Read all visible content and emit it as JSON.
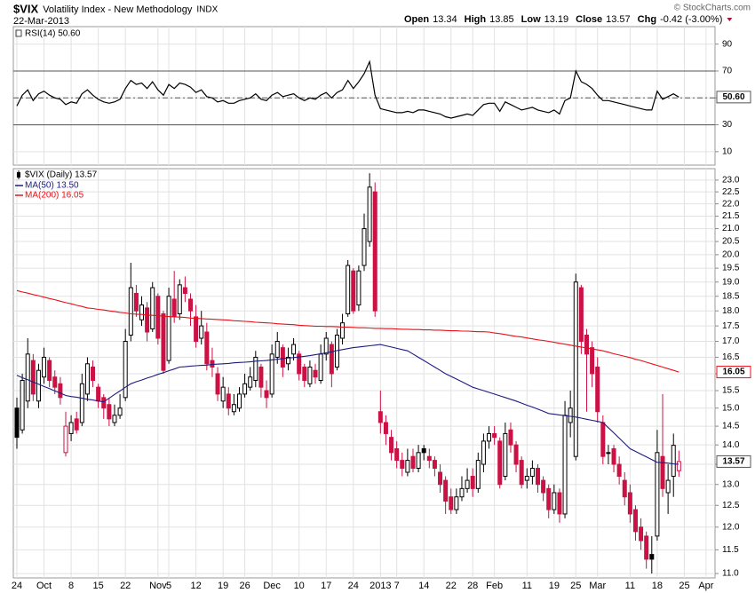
{
  "header": {
    "symbol": "$VIX",
    "name": "Volatility Index - New Methodology",
    "exchange": "INDX",
    "date": "22-Mar-2013",
    "quote": [
      {
        "label": "Open",
        "value": 13.34
      },
      {
        "label": "High",
        "value": 13.85
      },
      {
        "label": "Low",
        "value": 13.19
      },
      {
        "label": "Close",
        "value": 13.57
      },
      {
        "label": "Chg",
        "value": "-0.42 (-3.00%)"
      }
    ],
    "copyright": "© StockCharts.com"
  },
  "chart_data": [
    {
      "type": "line",
      "legend": "RSI(14) 50.60",
      "color": "#000000",
      "tag": "50.60",
      "ylim": [
        0,
        103
      ],
      "yticks": [
        10,
        30,
        50,
        70,
        90
      ],
      "levels": [
        30,
        70
      ],
      "midline": 50,
      "values": [
        44,
        52,
        56,
        48,
        53,
        55,
        52,
        50,
        49,
        45,
        47,
        46,
        53,
        56,
        52,
        49,
        47,
        46,
        47,
        49,
        57,
        63,
        60,
        61,
        57,
        62,
        56,
        52,
        60,
        57,
        61,
        60,
        58,
        54,
        56,
        51,
        50,
        47,
        48,
        46,
        46,
        48,
        49,
        50,
        53,
        49,
        48,
        52,
        54,
        51,
        52,
        53,
        50,
        48,
        50,
        49,
        52,
        54,
        50,
        54,
        56,
        63,
        57,
        62,
        68,
        77,
        52,
        42,
        41,
        40,
        39,
        39,
        40,
        39,
        41,
        41,
        40,
        39,
        38,
        36,
        35,
        36,
        37,
        38,
        37,
        41,
        45,
        46,
        46,
        40,
        47,
        45,
        43,
        41,
        42,
        43,
        41,
        40,
        39,
        41,
        38,
        48,
        50,
        70,
        62,
        60,
        57,
        52,
        48,
        48,
        47,
        46,
        45,
        44,
        43,
        42,
        41,
        41,
        55,
        49,
        51,
        53,
        50.6,
        null,
        null,
        null,
        null,
        null,
        null
      ]
    },
    {
      "type": "candlestick",
      "legend": "$VIX (Daily) 13.57",
      "tag": "13.57",
      "log": true,
      "up_color": "#000000",
      "down_color": "#cc1144",
      "ylim": [
        10.91,
        23.5
      ],
      "yticks": [
        {
          "value": 11,
          "label": "11.0"
        },
        11.5,
        {
          "value": 12,
          "label": "12.0"
        },
        12.5,
        {
          "value": 13,
          "label": "13.0"
        },
        13.5,
        {
          "value": 14,
          "label": "14.0"
        },
        14.5,
        {
          "value": 15,
          "label": "15.0"
        },
        15.5,
        {
          "value": 16,
          "label": "16.0"
        },
        16.5,
        {
          "value": 17,
          "label": "17.0"
        },
        17.5,
        {
          "value": 18,
          "label": "18.0"
        },
        18.5,
        {
          "value": 19,
          "label": "19.0"
        },
        19.5,
        {
          "value": 20,
          "label": "20.0"
        },
        20.5,
        {
          "value": 21,
          "label": "21.0"
        },
        21.5,
        {
          "value": 22,
          "label": "22.0"
        },
        22.5,
        {
          "value": 23,
          "label": "23.0"
        }
      ],
      "categories": [
        "24",
        null,
        null,
        null,
        null,
        "Oct",
        null,
        null,
        null,
        null,
        "8",
        null,
        null,
        null,
        null,
        "15",
        null,
        null,
        null,
        null,
        "22",
        null,
        null,
        null,
        null,
        null,
        "Nov",
        null,
        "5",
        null,
        null,
        null,
        null,
        "12",
        null,
        null,
        null,
        null,
        "19",
        null,
        null,
        null,
        "26",
        null,
        null,
        null,
        null,
        "Dec",
        null,
        null,
        null,
        null,
        "10",
        null,
        null,
        null,
        null,
        "17",
        null,
        null,
        null,
        null,
        "24",
        null,
        null,
        null,
        null,
        "2013",
        null,
        null,
        "7",
        null,
        null,
        null,
        null,
        "14",
        null,
        null,
        null,
        null,
        "22",
        null,
        null,
        null,
        "28",
        null,
        null,
        null,
        "Feb",
        null,
        null,
        null,
        null,
        null,
        "11",
        null,
        null,
        null,
        null,
        "19",
        null,
        null,
        null,
        "25",
        null,
        null,
        null,
        "Mar",
        null,
        null,
        null,
        null,
        null,
        "11",
        null,
        null,
        null,
        null,
        "18",
        null,
        null,
        null,
        null,
        "25",
        null,
        null,
        null,
        "Apr",
        null
      ],
      "open": [
        15.0,
        14.4,
        15.2,
        16.4,
        15.2,
        15.9,
        16.4,
        15.9,
        15.7,
        13.8,
        14.3,
        14.7,
        14.6,
        15.4,
        16.2,
        15.6,
        15.3,
        15.1,
        14.6,
        14.8,
        15.3,
        17.2,
        18.6,
        17.7,
        18.1,
        17.4,
        18.5,
        17.9,
        16.4,
        18.4,
        17.9,
        18.8,
        18.4,
        17.8,
        17.1,
        17.3,
        16.4,
        16.0,
        15.2,
        15.4,
        14.9,
        15.0,
        15.4,
        15.6,
        15.8,
        16.2,
        15.5,
        15.4,
        16.5,
        16.8,
        16.3,
        16.6,
        16.6,
        16.2,
        15.7,
        16.1,
        15.8,
        16.6,
        16.9,
        16.2,
        17.1,
        17.9,
        19.4,
        18.2,
        19.6,
        20.5,
        22.5,
        14.9,
        14.6,
        14.2,
        13.9,
        13.6,
        13.3,
        13.7,
        13.4,
        13.9,
        13.7,
        13.6,
        13.3,
        13.1,
        12.7,
        12.4,
        12.7,
        12.9,
        13.2,
        12.9,
        13.5,
        14.1,
        14.3,
        14.1,
        13.2,
        14.4,
        14.0,
        13.6,
        13.1,
        13.2,
        13.4,
        13.1,
        12.9,
        12.4,
        12.8,
        12.3,
        14.6,
        13.7,
        18.8,
        17.2,
        16.8,
        16.2,
        14.6,
        13.8,
        13.9,
        13.5,
        13.1,
        12.8,
        12.4,
        12.0,
        11.8,
        11.4,
        11.8,
        13.7,
        12.8,
        13.2,
        13.34,
        null,
        null,
        null,
        null,
        null,
        null
      ],
      "high": [
        15.3,
        16.0,
        17.1,
        16.6,
        16.3,
        16.8,
        16.5,
        16.1,
        15.9,
        14.9,
        14.8,
        14.9,
        16.0,
        16.5,
        16.4,
        15.7,
        15.4,
        15.3,
        15.1,
        15.4,
        17.4,
        19.7,
        18.9,
        18.5,
        18.3,
        19.0,
        18.6,
        18.0,
        18.8,
        19.4,
        19.1,
        19.2,
        18.6,
        18.2,
        18.0,
        17.6,
        16.8,
        16.2,
        15.9,
        15.6,
        15.4,
        15.6,
        16.0,
        16.2,
        16.7,
        16.3,
        15.8,
        16.9,
        17.3,
        16.9,
        16.8,
        17.1,
        16.7,
        16.3,
        16.4,
        16.3,
        16.9,
        17.3,
        17.0,
        17.4,
        17.9,
        19.8,
        19.5,
        19.6,
        21.6,
        23.3,
        22.9,
        15.5,
        14.8,
        14.4,
        14.1,
        13.8,
        13.9,
        13.9,
        14.0,
        14.0,
        13.9,
        13.7,
        13.5,
        13.2,
        12.9,
        12.9,
        13.2,
        13.4,
        13.4,
        13.8,
        14.3,
        14.5,
        14.5,
        14.2,
        14.6,
        14.6,
        14.1,
        13.7,
        13.4,
        13.6,
        13.5,
        13.2,
        13.0,
        13.0,
        12.9,
        15.2,
        15.5,
        19.3,
        18.9,
        17.4,
        17.0,
        16.5,
        14.8,
        14.0,
        14.0,
        13.7,
        13.3,
        13.0,
        12.5,
        12.2,
        11.9,
        11.8,
        14.4,
        15.4,
        13.5,
        14.3,
        13.85,
        null,
        null,
        null,
        null,
        null,
        null
      ],
      "low": [
        13.9,
        14.3,
        15.0,
        15.2,
        15.0,
        15.7,
        15.6,
        15.4,
        15.1,
        13.7,
        14.1,
        14.3,
        14.5,
        15.2,
        15.6,
        15.0,
        14.7,
        14.5,
        14.5,
        14.7,
        15.2,
        17.0,
        17.8,
        17.5,
        17.0,
        17.3,
        16.9,
        16.0,
        16.3,
        17.6,
        17.7,
        18.3,
        17.5,
        16.8,
        16.9,
        16.1,
        15.9,
        15.2,
        15.0,
        14.8,
        14.8,
        14.9,
        15.3,
        15.5,
        15.6,
        15.3,
        15.0,
        15.3,
        16.3,
        15.9,
        16.1,
        16.4,
        15.8,
        15.6,
        15.6,
        15.7,
        15.7,
        16.4,
        15.6,
        16.1,
        16.9,
        17.8,
        17.9,
        18.0,
        19.4,
        20.3,
        17.8,
        14.3,
        14.0,
        13.6,
        13.4,
        13.2,
        13.2,
        13.3,
        13.3,
        13.6,
        13.4,
        13.2,
        12.8,
        12.3,
        12.3,
        12.3,
        12.6,
        12.8,
        12.7,
        12.8,
        13.3,
        13.9,
        14.0,
        12.9,
        13.1,
        13.8,
        13.3,
        12.9,
        12.9,
        13.0,
        12.8,
        12.6,
        12.2,
        12.3,
        12.1,
        12.2,
        14.2,
        13.6,
        16.6,
        14.9,
        15.6,
        14.6,
        13.5,
        13.5,
        13.3,
        13.0,
        12.5,
        12.1,
        11.7,
        11.5,
        11.1,
        11.0,
        11.7,
        12.7,
        12.3,
        12.7,
        13.19,
        null,
        null,
        null,
        null,
        null,
        null
      ],
      "close": [
        14.2,
        15.8,
        16.6,
        15.4,
        16.1,
        16.5,
        15.8,
        15.6,
        15.3,
        14.5,
        14.6,
        14.4,
        15.7,
        16.3,
        15.8,
        15.2,
        15.0,
        14.7,
        14.8,
        15.0,
        17.0,
        18.8,
        18.0,
        18.2,
        17.3,
        18.8,
        17.1,
        16.1,
        18.5,
        17.8,
        18.9,
        18.6,
        18.0,
        17.0,
        17.5,
        16.3,
        16.2,
        15.4,
        15.6,
        15.0,
        15.1,
        15.4,
        15.7,
        15.9,
        16.5,
        15.6,
        15.3,
        16.6,
        17.0,
        16.2,
        16.5,
        16.9,
        16.0,
        15.8,
        16.2,
        15.9,
        16.6,
        17.1,
        16.0,
        17.2,
        17.6,
        19.6,
        18.0,
        19.4,
        21.0,
        22.7,
        18.0,
        14.6,
        14.3,
        13.8,
        13.6,
        13.4,
        13.6,
        13.4,
        13.8,
        13.8,
        13.6,
        13.4,
        13.0,
        12.6,
        12.4,
        12.7,
        12.9,
        13.1,
        12.9,
        13.6,
        14.1,
        14.3,
        14.2,
        13.0,
        14.3,
        14.0,
        13.5,
        13.0,
        13.2,
        13.4,
        13.0,
        12.8,
        12.4,
        12.8,
        12.3,
        14.8,
        15.0,
        19.0,
        17.0,
        16.6,
        16.0,
        14.9,
        13.7,
        13.8,
        13.5,
        13.2,
        12.7,
        12.3,
        11.9,
        11.7,
        11.3,
        11.3,
        13.8,
        12.9,
        13.1,
        13.99,
        13.57,
        null,
        null,
        null,
        null,
        null,
        null
      ],
      "series": [
        {
          "name": "MA(50) 13.50",
          "color": "#1c1c80",
          "values": [
            15.95,
            15.88,
            15.82,
            15.75,
            15.69,
            15.62,
            15.56,
            15.49,
            15.43,
            15.36,
            15.33,
            15.31,
            15.28,
            15.25,
            15.23,
            15.2,
            15.18,
            15.28,
            15.39,
            15.49,
            15.6,
            15.7,
            15.76,
            15.81,
            15.87,
            15.92,
            15.98,
            16.03,
            16.09,
            16.14,
            16.2,
            16.21,
            16.23,
            16.24,
            16.25,
            16.26,
            16.28,
            16.29,
            16.3,
            16.31,
            16.33,
            16.34,
            16.35,
            16.36,
            16.38,
            16.39,
            16.4,
            16.42,
            16.44,
            16.46,
            16.48,
            16.49,
            16.51,
            16.53,
            16.55,
            16.58,
            16.61,
            16.64,
            16.67,
            16.71,
            16.74,
            16.77,
            16.8,
            16.82,
            16.84,
            16.86,
            16.88,
            16.9,
            16.86,
            16.82,
            16.78,
            16.74,
            16.7,
            16.6,
            16.5,
            16.4,
            16.3,
            16.2,
            16.1,
            16.0,
            15.92,
            15.84,
            15.76,
            15.68,
            15.6,
            15.55,
            15.5,
            15.45,
            15.4,
            15.35,
            15.3,
            15.25,
            15.2,
            15.14,
            15.08,
            15.03,
            14.97,
            14.91,
            14.85,
            14.83,
            14.81,
            14.79,
            14.77,
            14.75,
            14.72,
            14.69,
            14.66,
            14.63,
            14.6,
            14.46,
            14.32,
            14.18,
            14.04,
            13.9,
            13.83,
            13.76,
            13.69,
            13.62,
            13.55,
            13.54,
            13.53,
            13.51,
            13.5,
            null,
            null,
            null,
            null,
            null,
            null
          ]
        },
        {
          "name": "MA(200) 16.05",
          "color": "#e8101a",
          "tag": "16.05",
          "values": [
            18.7,
            18.65,
            18.61,
            18.56,
            18.52,
            18.47,
            18.42,
            18.38,
            18.33,
            18.28,
            18.24,
            18.19,
            18.15,
            18.1,
            18.08,
            18.05,
            18.03,
            18.0,
            17.98,
            17.95,
            17.93,
            17.9,
            17.89,
            17.88,
            17.86,
            17.85,
            17.84,
            17.82,
            17.81,
            17.8,
            17.79,
            17.78,
            17.76,
            17.75,
            17.74,
            17.73,
            17.72,
            17.71,
            17.7,
            17.69,
            17.67,
            17.66,
            17.65,
            17.64,
            17.62,
            17.61,
            17.6,
            17.59,
            17.57,
            17.56,
            17.55,
            17.54,
            17.52,
            17.51,
            17.5,
            17.49,
            17.49,
            17.48,
            17.48,
            17.47,
            17.46,
            17.46,
            17.45,
            17.44,
            17.44,
            17.43,
            17.42,
            17.42,
            17.41,
            17.41,
            17.4,
            17.39,
            17.39,
            17.38,
            17.38,
            17.37,
            17.37,
            17.36,
            17.36,
            17.35,
            17.34,
            17.34,
            17.33,
            17.33,
            17.32,
            17.31,
            17.31,
            17.3,
            17.27,
            17.25,
            17.22,
            17.19,
            17.16,
            17.14,
            17.11,
            17.08,
            17.05,
            17.03,
            17.0,
            16.97,
            16.94,
            16.91,
            16.88,
            16.85,
            16.82,
            16.79,
            16.76,
            16.73,
            16.7,
            16.66,
            16.61,
            16.57,
            16.53,
            16.49,
            16.44,
            16.4,
            16.35,
            16.3,
            16.25,
            16.2,
            16.15,
            16.1,
            16.05,
            null,
            null,
            null,
            null,
            null,
            null
          ]
        }
      ]
    }
  ]
}
